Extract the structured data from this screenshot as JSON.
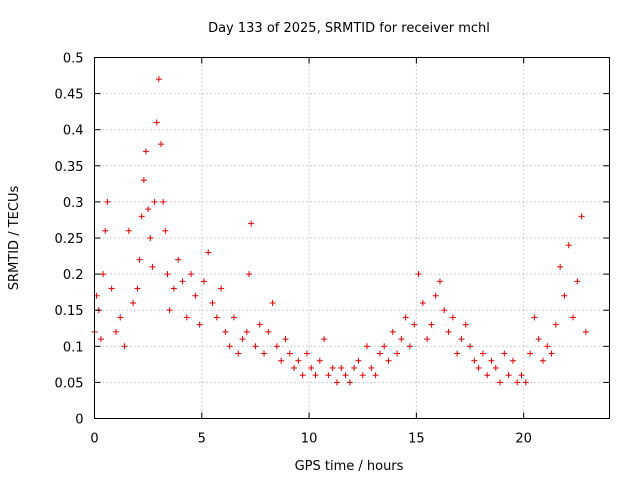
{
  "chart_data": {
    "type": "scatter",
    "title": "Day 133 of 2025, SRMTID for receiver mchl",
    "xlabel": "GPS time / hours",
    "ylabel": "SRMTID / TECUs",
    "xlim": [
      0,
      24
    ],
    "ylim": [
      0,
      0.5
    ],
    "x_ticks": [
      0,
      5,
      10,
      15,
      20
    ],
    "x_tick_labels": [
      "0",
      "5",
      "10",
      "15",
      "20"
    ],
    "y_ticks": [
      0,
      0.05,
      0.1,
      0.15,
      0.2,
      0.25,
      0.3,
      0.35,
      0.4,
      0.45,
      0.5
    ],
    "y_tick_labels": [
      "0",
      "0.05",
      "0.1",
      "0.15",
      "0.2",
      "0.25",
      "0.3",
      "0.35",
      "0.4",
      "0.45",
      "0.5"
    ],
    "grid": true,
    "marker": "plus",
    "color": "#e00000",
    "series": [
      {
        "name": "SRMTID",
        "x": [
          0.0,
          0.1,
          0.2,
          0.3,
          0.4,
          0.5,
          0.6,
          0.8,
          1.0,
          1.2,
          1.4,
          1.6,
          1.8,
          2.0,
          2.1,
          2.2,
          2.3,
          2.4,
          2.5,
          2.6,
          2.7,
          2.8,
          2.9,
          3.0,
          3.1,
          3.2,
          3.3,
          3.4,
          3.5,
          3.7,
          3.9,
          4.1,
          4.3,
          4.5,
          4.7,
          4.9,
          5.1,
          5.3,
          5.5,
          5.7,
          5.9,
          6.1,
          6.3,
          6.5,
          6.7,
          6.9,
          7.1,
          7.2,
          7.3,
          7.5,
          7.7,
          7.9,
          8.1,
          8.3,
          8.5,
          8.7,
          8.9,
          9.1,
          9.3,
          9.5,
          9.7,
          9.9,
          10.1,
          10.3,
          10.5,
          10.7,
          10.9,
          11.1,
          11.3,
          11.5,
          11.7,
          11.9,
          12.1,
          12.3,
          12.5,
          12.7,
          12.9,
          13.1,
          13.3,
          13.5,
          13.7,
          13.9,
          14.1,
          14.3,
          14.5,
          14.7,
          14.9,
          15.1,
          15.3,
          15.5,
          15.7,
          15.9,
          16.1,
          16.3,
          16.5,
          16.7,
          16.9,
          17.1,
          17.3,
          17.5,
          17.7,
          17.9,
          18.1,
          18.3,
          18.5,
          18.7,
          18.9,
          19.1,
          19.3,
          19.5,
          19.7,
          19.9,
          20.1,
          20.3,
          20.5,
          20.7,
          20.9,
          21.1,
          21.3,
          21.5,
          21.7,
          21.9,
          22.1,
          22.3,
          22.5,
          22.7,
          22.9
        ],
        "y": [
          0.12,
          0.17,
          0.15,
          0.11,
          0.2,
          0.26,
          0.3,
          0.18,
          0.12,
          0.14,
          0.1,
          0.26,
          0.16,
          0.18,
          0.22,
          0.28,
          0.33,
          0.37,
          0.29,
          0.25,
          0.21,
          0.3,
          0.41,
          0.47,
          0.38,
          0.3,
          0.26,
          0.2,
          0.15,
          0.18,
          0.22,
          0.19,
          0.14,
          0.2,
          0.17,
          0.13,
          0.19,
          0.23,
          0.16,
          0.14,
          0.18,
          0.12,
          0.1,
          0.14,
          0.09,
          0.11,
          0.12,
          0.2,
          0.27,
          0.1,
          0.13,
          0.09,
          0.12,
          0.16,
          0.1,
          0.08,
          0.11,
          0.09,
          0.07,
          0.08,
          0.06,
          0.09,
          0.07,
          0.06,
          0.08,
          0.11,
          0.06,
          0.07,
          0.05,
          0.07,
          0.06,
          0.05,
          0.07,
          0.08,
          0.06,
          0.1,
          0.07,
          0.06,
          0.09,
          0.1,
          0.08,
          0.12,
          0.09,
          0.11,
          0.14,
          0.1,
          0.13,
          0.2,
          0.16,
          0.11,
          0.13,
          0.17,
          0.19,
          0.15,
          0.12,
          0.14,
          0.09,
          0.11,
          0.13,
          0.1,
          0.08,
          0.07,
          0.09,
          0.06,
          0.08,
          0.07,
          0.05,
          0.09,
          0.06,
          0.08,
          0.05,
          0.06,
          0.05,
          0.09,
          0.14,
          0.11,
          0.08,
          0.1,
          0.09,
          0.13,
          0.21,
          0.17,
          0.24,
          0.14,
          0.19,
          0.28,
          0.12
        ]
      }
    ]
  }
}
